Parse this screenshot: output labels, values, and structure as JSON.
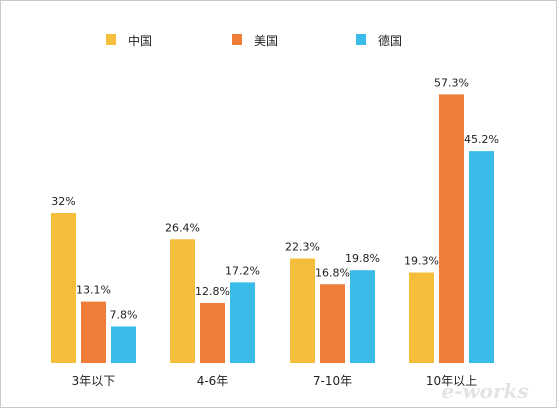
{
  "chart_data": {
    "type": "bar",
    "categories": [
      "3年以下",
      "4-6年",
      "7-10年",
      "10年以上"
    ],
    "series": [
      {
        "name": "中国",
        "color": "#F5BE3A",
        "values": [
          32,
          26.4,
          22.3,
          19.3
        ],
        "labels": [
          "32%",
          "26.4%",
          "22.3%",
          "19.3%"
        ]
      },
      {
        "name": "美国",
        "color": "#EE7D3A",
        "values": [
          13.1,
          12.8,
          16.8,
          57.3
        ],
        "labels": [
          "13.1%",
          "12.8%",
          "16.8%",
          "57.3%"
        ]
      },
      {
        "name": "德国",
        "color": "#39BCE8",
        "values": [
          7.8,
          17.2,
          19.8,
          45.2
        ],
        "labels": [
          "7.8%",
          "17.2%",
          "19.8%",
          "45.2%"
        ]
      }
    ],
    "ylim": [
      0,
      60
    ],
    "grid": false,
    "legend": "top"
  },
  "watermark": {
    "text": "e-works"
  }
}
